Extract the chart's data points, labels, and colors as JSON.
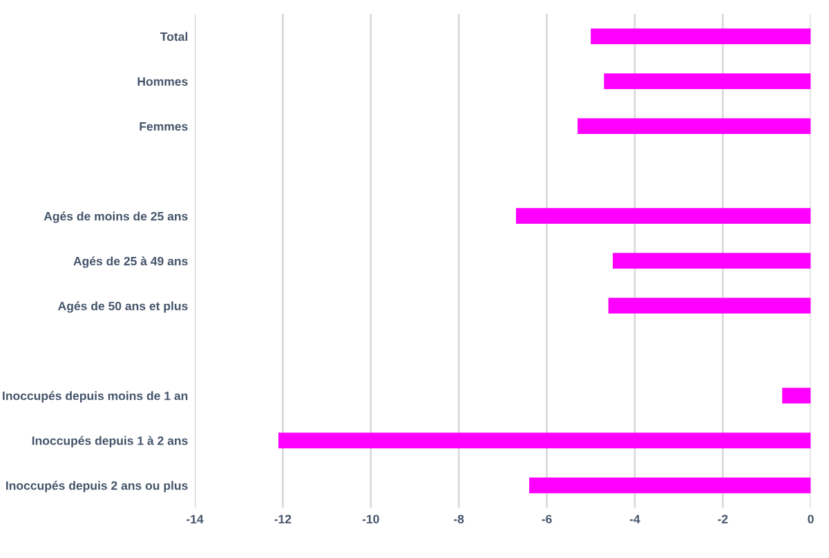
{
  "chart_data": {
    "type": "bar",
    "orientation": "horizontal",
    "categories": [
      "Total",
      "Hommes",
      "Femmes",
      null,
      "Agés de moins de 25 ans",
      "Agés de 25 à 49 ans",
      "Agés de 50 ans et plus",
      null,
      "Inoccupés depuis moins de 1 an",
      "Inoccupés depuis 1 à 2 ans",
      "Inoccupés depuis 2 ans ou plus"
    ],
    "values": [
      -5.0,
      -4.7,
      -5.3,
      null,
      -6.7,
      -4.5,
      -4.6,
      null,
      -0.65,
      -12.1,
      -6.4
    ],
    "color": "#ff00ff",
    "xlim": [
      -14,
      0
    ],
    "xticks": [
      -14,
      -12,
      -10,
      -8,
      -6,
      -4,
      -2,
      0
    ],
    "grid": "x"
  }
}
